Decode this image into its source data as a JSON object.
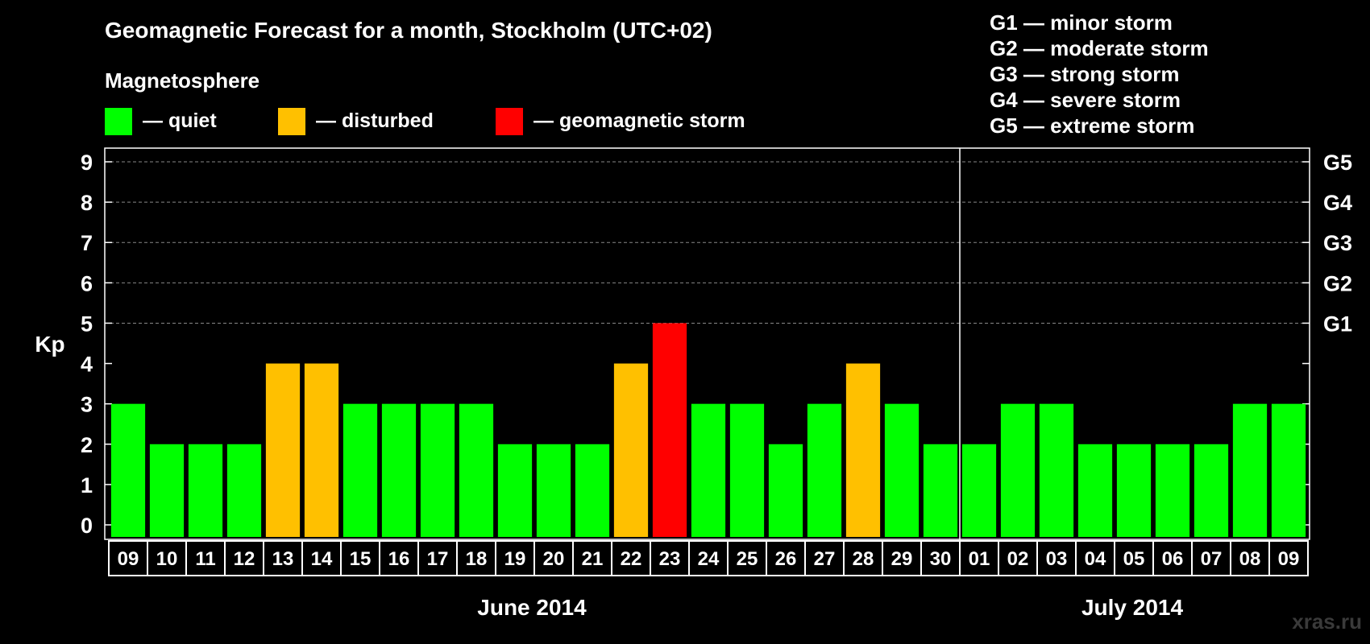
{
  "chart_data": {
    "type": "bar",
    "title": "Geomagnetic Forecast for a month, Stockholm (UTC+02)",
    "legend_title": "Magnetosphere",
    "ylabel": "Kp",
    "ylim": [
      0,
      9
    ],
    "yticks": [
      0,
      1,
      2,
      3,
      4,
      5,
      6,
      7,
      8,
      9
    ],
    "grid": true,
    "legend": [
      {
        "label": "— quiet",
        "color": "#00ff00"
      },
      {
        "label": "— disturbed",
        "color": "#ffc000"
      },
      {
        "label": "— geomagnetic storm",
        "color": "#ff0000"
      }
    ],
    "storm_levels": [
      {
        "label": "G1",
        "kp": 5
      },
      {
        "label": "G2",
        "kp": 6
      },
      {
        "label": "G3",
        "kp": 7
      },
      {
        "label": "G4",
        "kp": 8
      },
      {
        "label": "G5",
        "kp": 9
      }
    ],
    "storm_legend": [
      "G1 — minor storm",
      "G2 — moderate storm",
      "G3 — strong storm",
      "G4 — severe storm",
      "G5 — extreme storm"
    ],
    "categories": [
      "09",
      "10",
      "11",
      "12",
      "13",
      "14",
      "15",
      "16",
      "17",
      "18",
      "19",
      "20",
      "21",
      "22",
      "23",
      "24",
      "25",
      "26",
      "27",
      "28",
      "29",
      "30",
      "01",
      "02",
      "03",
      "04",
      "05",
      "06",
      "07",
      "08",
      "09"
    ],
    "values": [
      3,
      2,
      2,
      2,
      4,
      4,
      3,
      3,
      3,
      3,
      2,
      2,
      2,
      4,
      5,
      3,
      3,
      2,
      3,
      4,
      3,
      2,
      2,
      3,
      3,
      2,
      2,
      2,
      2,
      3,
      3
    ],
    "status": [
      "quiet",
      "quiet",
      "quiet",
      "quiet",
      "disturbed",
      "disturbed",
      "quiet",
      "quiet",
      "quiet",
      "quiet",
      "quiet",
      "quiet",
      "quiet",
      "disturbed",
      "storm",
      "quiet",
      "quiet",
      "quiet",
      "quiet",
      "disturbed",
      "quiet",
      "quiet",
      "quiet",
      "quiet",
      "quiet",
      "quiet",
      "quiet",
      "quiet",
      "quiet",
      "quiet",
      "quiet"
    ],
    "status_colors": {
      "quiet": "#00ff00",
      "disturbed": "#ffc000",
      "storm": "#ff0000"
    },
    "months": [
      {
        "label": "June 2014",
        "start_index": 0,
        "end_index": 21
      },
      {
        "label": "July 2014",
        "start_index": 22,
        "end_index": 30
      }
    ]
  },
  "watermark": "xras.ru"
}
